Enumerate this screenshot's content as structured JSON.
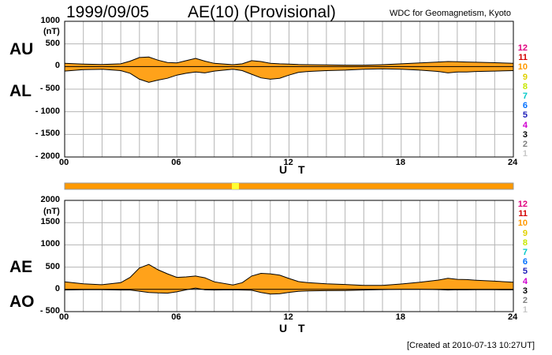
{
  "header": {
    "date": "1999/09/05",
    "title": "AE(10) (Provisional)",
    "source": "WDC for Geomagnetism, Kyoto"
  },
  "footer": {
    "created": "[Created at 2010-07-13 10:27UT]"
  },
  "legend_numbers": [
    {
      "label": "12",
      "color": "#e0007f"
    },
    {
      "label": "11",
      "color": "#d40000"
    },
    {
      "label": "10",
      "color": "#ff9900"
    },
    {
      "label": "9",
      "color": "#e0d000"
    },
    {
      "label": "8",
      "color": "#c8e800"
    },
    {
      "label": "7",
      "color": "#00c8c8"
    },
    {
      "label": "6",
      "color": "#0070ff"
    },
    {
      "label": "5",
      "color": "#1c1cb8"
    },
    {
      "label": "4",
      "color": "#d000d0"
    },
    {
      "label": "3",
      "color": "#000000"
    },
    {
      "label": "2",
      "color": "#7f7f7f"
    },
    {
      "label": "1",
      "color": "#c8c8c8"
    }
  ],
  "colors": {
    "fill": "#ffa21a",
    "grid": "#b4b4b4",
    "stations_bar": "#ff9900",
    "stations_bar_highlight": "#ffff33"
  },
  "chart_data": [
    {
      "type": "area",
      "name": "AU/AL",
      "upper_label": "AU",
      "lower_label": "AL",
      "unit": "(nT)",
      "xlabel": "U T",
      "ylim": [
        -2000,
        1000
      ],
      "yticks": [
        1000,
        500,
        0,
        -500,
        -1000,
        -1500,
        -2000
      ],
      "ytick_labels": [
        "1000",
        "500",
        "0",
        "- 500",
        "- 1000",
        "- 1500",
        "- 2000"
      ],
      "xlim": [
        0,
        24
      ],
      "xticks": [
        0,
        6,
        12,
        18,
        24
      ],
      "xtick_labels": [
        "00",
        "06",
        "12",
        "18",
        "24"
      ],
      "grid": true,
      "x": [
        0,
        1,
        2,
        3,
        3.5,
        4,
        4.5,
        5,
        5.5,
        6,
        6.5,
        7,
        7.5,
        8,
        9,
        9.5,
        10,
        10.5,
        11,
        11.5,
        12,
        12.5,
        13,
        14,
        15,
        16,
        17,
        18,
        19,
        20,
        20.5,
        21,
        21.5,
        22,
        23,
        24
      ],
      "series": [
        {
          "name": "AU",
          "values": [
            70,
            55,
            45,
            60,
            120,
            200,
            210,
            140,
            90,
            80,
            130,
            180,
            120,
            70,
            40,
            60,
            130,
            110,
            70,
            60,
            55,
            45,
            40,
            35,
            30,
            30,
            40,
            60,
            80,
            100,
            110,
            105,
            100,
            95,
            85,
            70
          ]
        },
        {
          "name": "AL",
          "values": [
            -100,
            -70,
            -60,
            -90,
            -150,
            -280,
            -350,
            -300,
            -260,
            -190,
            -150,
            -120,
            -140,
            -100,
            -60,
            -90,
            -170,
            -250,
            -280,
            -260,
            -190,
            -130,
            -110,
            -90,
            -80,
            -60,
            -50,
            -60,
            -80,
            -110,
            -140,
            -120,
            -120,
            -110,
            -100,
            -90
          ]
        }
      ]
    },
    {
      "type": "area",
      "name": "AE/AO",
      "upper_label": "AE",
      "lower_label": "AO",
      "unit": "(nT)",
      "xlabel": "U T",
      "ylim": [
        -500,
        2000
      ],
      "yticks": [
        2000,
        1500,
        1000,
        500,
        0,
        -500
      ],
      "ytick_labels": [
        "2000",
        "1500",
        "1000",
        "500",
        "0",
        "- 500"
      ],
      "xlim": [
        0,
        24
      ],
      "xticks": [
        0,
        6,
        12,
        18,
        24
      ],
      "xtick_labels": [
        "00",
        "06",
        "12",
        "18",
        "24"
      ],
      "grid": true,
      "x": [
        0,
        1,
        2,
        3,
        3.5,
        4,
        4.5,
        5,
        5.5,
        6,
        6.5,
        7,
        7.5,
        8,
        9,
        9.5,
        10,
        10.5,
        11,
        11.5,
        12,
        12.5,
        13,
        14,
        15,
        16,
        17,
        18,
        19,
        20,
        20.5,
        21,
        21.5,
        22,
        23,
        24
      ],
      "series": [
        {
          "name": "AE",
          "values": [
            170,
            125,
            105,
            150,
            270,
            480,
            560,
            440,
            350,
            270,
            280,
            300,
            260,
            170,
            100,
            150,
            300,
            360,
            350,
            320,
            245,
            175,
            150,
            125,
            110,
            90,
            90,
            120,
            160,
            210,
            250,
            225,
            220,
            205,
            185,
            160
          ]
        },
        {
          "name": "AO",
          "values": [
            -15,
            -8,
            -8,
            -15,
            -15,
            -40,
            -70,
            -80,
            -85,
            -55,
            -10,
            30,
            -10,
            -15,
            -10,
            -15,
            -20,
            -70,
            -105,
            -100,
            -68,
            -43,
            -35,
            -28,
            -25,
            -15,
            -5,
            0,
            0,
            -5,
            -15,
            -8,
            -10,
            -8,
            -8,
            -10
          ]
        }
      ]
    }
  ]
}
